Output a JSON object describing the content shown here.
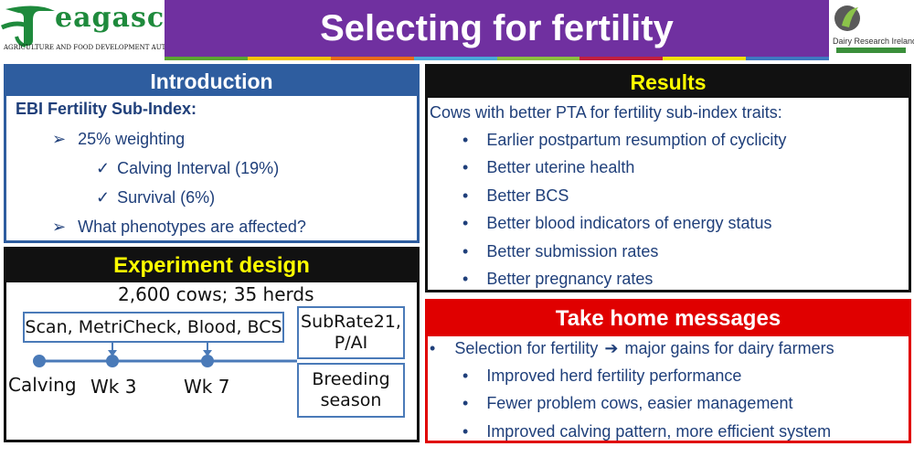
{
  "header": {
    "title": "Selecting for fertility",
    "logo_left_name": "eagasc",
    "logo_left_sub": "Agriculture and Food Development Authority",
    "logo_right_name": "Dairy Research Ireland",
    "strip_colors": [
      "#5aa531",
      "#f2c300",
      "#e86a1a",
      "#4aa8d8",
      "#8bbf3f",
      "#c11f3f",
      "#f0e100",
      "#3f78c0"
    ]
  },
  "intro": {
    "heading": "Introduction",
    "subheading": "EBI Fertility Sub-Index:",
    "items": [
      {
        "marker": "➢",
        "text": "25% weighting"
      },
      {
        "marker": "✓",
        "text": "Calving Interval (19%)"
      },
      {
        "marker": "✓",
        "text": "Survival (6%)"
      },
      {
        "marker": "➢",
        "text": "What phenotypes are affected?"
      }
    ]
  },
  "design": {
    "heading": "Experiment design",
    "cows": "2,600 cows; 35 herds",
    "measures_box": "Scan, MetriCheck, Blood, BCS",
    "subrate_line1": "SubRate21,",
    "subrate_line2": "P/AI",
    "breeding_line1": "Breeding",
    "breeding_line2": "season",
    "points": [
      "Calving",
      "Wk 3",
      "Wk 7"
    ]
  },
  "results": {
    "heading": "Results",
    "intro": "Cows with better PTA for fertility sub-index traits:",
    "items": [
      "Earlier postpartum resumption of cyclicity",
      "Better uterine health",
      "Better BCS",
      "Better blood indicators of energy status",
      "Better submission rates",
      "Better pregnancy rates"
    ]
  },
  "takehome": {
    "heading": "Take home messages",
    "main_pre": "Selection for fertility",
    "main_arrow": "➔",
    "main_post": "major gains for dairy farmers",
    "items": [
      "Improved herd fertility performance",
      "Fewer problem cows, easier management",
      "Improved calving pattern, more efficient system"
    ]
  }
}
